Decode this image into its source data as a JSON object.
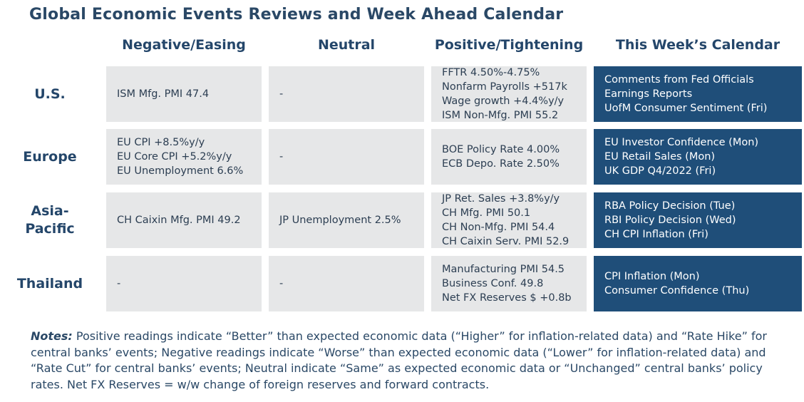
{
  "title": "Global Economic Events Reviews and Week Ahead Calendar",
  "columns": [
    "Negative/Easing",
    "Neutral",
    "Positive/Tightening",
    "This Week’s Calendar"
  ],
  "rows": [
    {
      "label": "U.S.",
      "negative": [
        "ISM Mfg. PMI 47.4"
      ],
      "neutral": [
        "-"
      ],
      "positive": [
        "FFTR 4.50%-4.75%",
        "Nonfarm Payrolls +517k",
        "Wage growth +4.4%y/y",
        "ISM Non-Mfg. PMI 55.2"
      ],
      "calendar": [
        "Comments from Fed Officials",
        "Earnings Reports",
        "UofM Consumer Sentiment (Fri)"
      ]
    },
    {
      "label": "Europe",
      "negative": [
        "EU CPI +8.5%y/y",
        "EU Core CPI +5.2%y/y",
        "EU Unemployment 6.6%"
      ],
      "neutral": [
        "-"
      ],
      "positive": [
        "BOE Policy Rate 4.00%",
        "ECB Depo. Rate 2.50%"
      ],
      "calendar": [
        "EU Investor Confidence (Mon)",
        "EU Retail Sales (Mon)",
        "UK GDP Q4/2022 (Fri)"
      ]
    },
    {
      "label": "Asia-Pacific",
      "label_lines": [
        "Asia-",
        "Pacific"
      ],
      "negative": [
        "CH Caixin Mfg. PMI 49.2"
      ],
      "neutral": [
        "JP Unemployment 2.5%"
      ],
      "positive": [
        "JP Ret. Sales +3.8%y/y",
        "CH Mfg. PMI 50.1",
        "CH Non-Mfg. PMI 54.4",
        "CH Caixin Serv. PMI 52.9"
      ],
      "calendar": [
        "RBA Policy Decision (Tue)",
        "RBI Policy Decision (Wed)",
        "CH CPI Inflation (Fri)"
      ]
    },
    {
      "label": "Thailand",
      "negative": [
        "-"
      ],
      "neutral": [
        "-"
      ],
      "positive": [
        "Manufacturing PMI 54.5",
        "Business Conf. 49.8",
        "Net FX Reserves $ +0.8b"
      ],
      "calendar": [
        "CPI Inflation (Mon)",
        "Consumer Confidence (Thu)"
      ]
    }
  ],
  "notes": {
    "label": "Notes:",
    "text": " Positive readings indicate “Better” than expected economic data (“Higher” for inflation-related data) and “Rate Hike” for central banks’ events; Negative readings indicate “Worse” than expected economic data (“Lower” for inflation-related data) and “Rate Cut” for central banks’ events; Neutral indicate “Same” as expected economic data or “Unchanged” central banks’ policy rates. Net FX Reserves = w/w change of foreign reserves and forward contracts."
  },
  "colors": {
    "calendar_bg": "#1f4e79",
    "cell_bg": "#e6e7e8",
    "heading": "#24466a"
  }
}
